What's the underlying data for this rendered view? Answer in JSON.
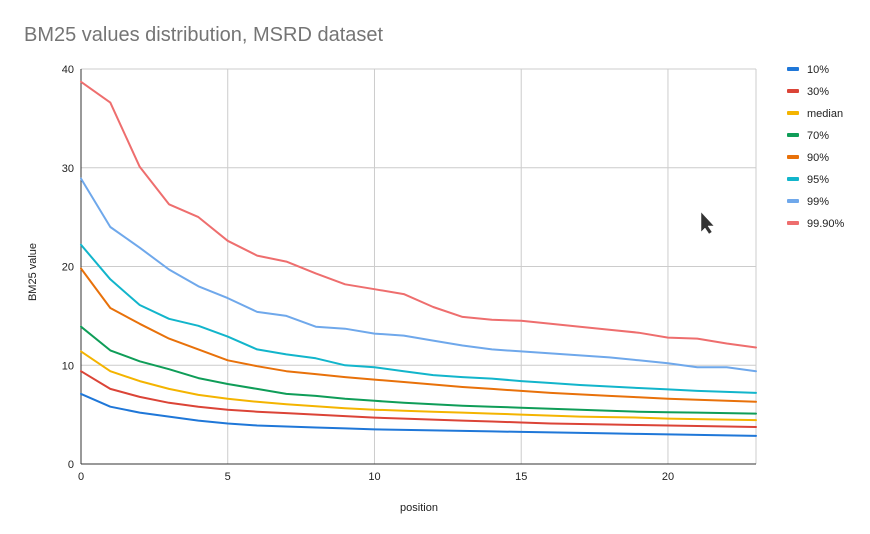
{
  "chart_data": {
    "type": "line",
    "title": "BM25 values distribution, MSRD dataset",
    "xlabel": "position",
    "ylabel": "BM25 value",
    "xlim": [
      0,
      23
    ],
    "ylim": [
      0,
      40
    ],
    "x_ticks": [
      0,
      5,
      10,
      15,
      20
    ],
    "y_ticks": [
      0,
      10,
      20,
      30,
      40
    ],
    "x": [
      0,
      1,
      2,
      3,
      4,
      5,
      6,
      7,
      8,
      9,
      10,
      11,
      12,
      13,
      14,
      15,
      16,
      17,
      18,
      19,
      20,
      21,
      22,
      23
    ],
    "legend_position": "right",
    "series": [
      {
        "name": "10%",
        "color": "#1f77d8",
        "values": [
          7.1,
          5.8,
          5.2,
          4.8,
          4.4,
          4.1,
          3.9,
          3.8,
          3.7,
          3.6,
          3.5,
          3.45,
          3.4,
          3.35,
          3.3,
          3.25,
          3.2,
          3.15,
          3.1,
          3.05,
          3.0,
          2.95,
          2.9,
          2.85
        ]
      },
      {
        "name": "30%",
        "color": "#db4437",
        "values": [
          9.4,
          7.6,
          6.8,
          6.2,
          5.8,
          5.5,
          5.3,
          5.15,
          5.0,
          4.85,
          4.7,
          4.6,
          4.5,
          4.4,
          4.3,
          4.2,
          4.1,
          4.05,
          4.0,
          3.95,
          3.9,
          3.85,
          3.8,
          3.75
        ]
      },
      {
        "name": "median",
        "color": "#f4b400",
        "values": [
          11.4,
          9.4,
          8.4,
          7.6,
          7.0,
          6.6,
          6.3,
          6.05,
          5.85,
          5.65,
          5.5,
          5.4,
          5.3,
          5.2,
          5.1,
          5.0,
          4.9,
          4.8,
          4.75,
          4.7,
          4.6,
          4.55,
          4.5,
          4.45
        ]
      },
      {
        "name": "70%",
        "color": "#0f9d58",
        "values": [
          13.9,
          11.5,
          10.4,
          9.6,
          8.7,
          8.1,
          7.6,
          7.1,
          6.9,
          6.6,
          6.4,
          6.2,
          6.05,
          5.9,
          5.8,
          5.7,
          5.6,
          5.5,
          5.4,
          5.3,
          5.25,
          5.2,
          5.15,
          5.1
        ]
      },
      {
        "name": "90%",
        "color": "#e8710a",
        "values": [
          19.8,
          15.8,
          14.2,
          12.7,
          11.6,
          10.5,
          9.9,
          9.4,
          9.1,
          8.8,
          8.55,
          8.3,
          8.05,
          7.8,
          7.6,
          7.4,
          7.2,
          7.05,
          6.9,
          6.75,
          6.6,
          6.5,
          6.4,
          6.3
        ]
      },
      {
        "name": "95%",
        "color": "#12b5cb",
        "values": [
          22.2,
          18.7,
          16.1,
          14.7,
          14.0,
          12.9,
          11.6,
          11.1,
          10.7,
          10.0,
          9.8,
          9.4,
          9.0,
          8.8,
          8.65,
          8.4,
          8.2,
          8.0,
          7.85,
          7.7,
          7.55,
          7.4,
          7.3,
          7.2
        ]
      },
      {
        "name": "99%",
        "color": "#6fa8eb",
        "values": [
          28.9,
          24.0,
          21.9,
          19.7,
          18.0,
          16.8,
          15.4,
          15.0,
          13.9,
          13.7,
          13.2,
          13.0,
          12.5,
          12.0,
          11.6,
          11.4,
          11.2,
          11.0,
          10.8,
          10.5,
          10.2,
          9.8,
          9.8,
          9.4
        ]
      },
      {
        "name": "99.90%",
        "color": "#ee6e6e",
        "values": [
          38.7,
          36.6,
          30.1,
          26.3,
          25.0,
          22.6,
          21.1,
          20.5,
          19.3,
          18.2,
          17.7,
          17.2,
          15.9,
          14.9,
          14.6,
          14.5,
          14.2,
          13.9,
          13.6,
          13.3,
          12.8,
          12.7,
          12.2,
          11.8
        ]
      }
    ]
  }
}
